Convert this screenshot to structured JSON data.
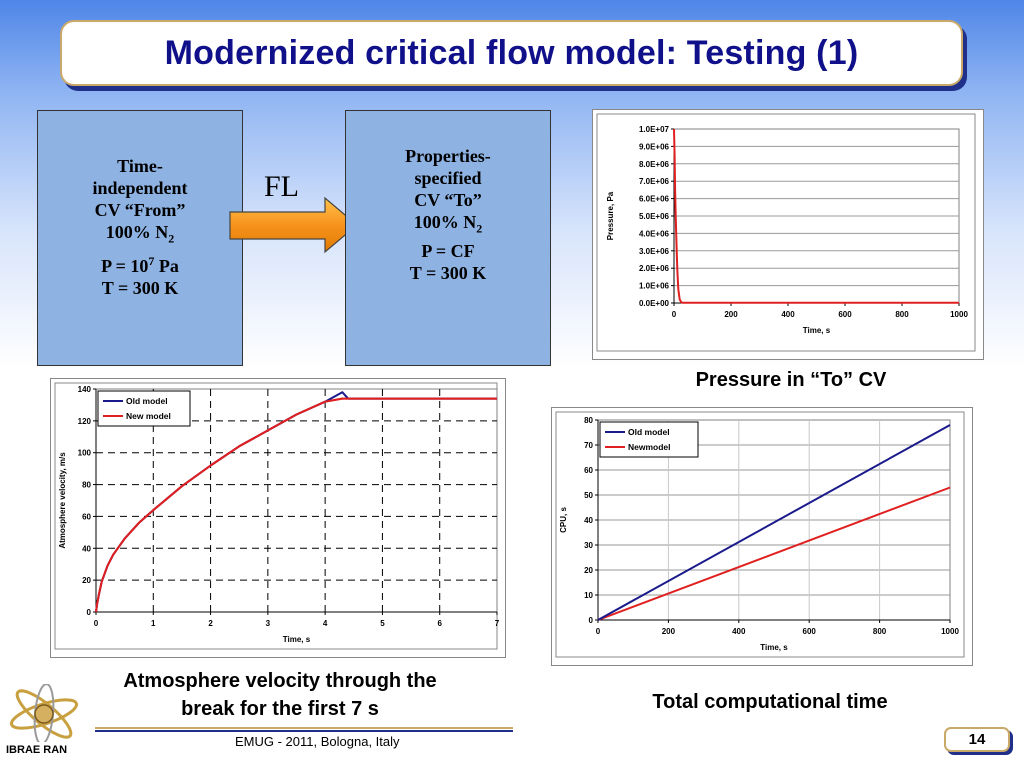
{
  "slide": {
    "title": "Modernized critical flow model: Testing (1)",
    "page_number": "14",
    "footer": "EMUG - 2011, Bologna, Italy",
    "org": "IBRAE RAN"
  },
  "cv_from": {
    "line1": "Time-",
    "line2": "independent",
    "line3": "CV “From”",
    "line4_main": "100% N",
    "line4_sub": "2",
    "line5_main": "P = 10",
    "line5_sup": "7",
    "line5_unit": " Pa",
    "line6": "T = 300 K"
  },
  "cv_to": {
    "line1": "Properties-",
    "line2": "specified",
    "line3": "CV “To”",
    "line4_main": "100% N",
    "line4_sub": "2",
    "line5": "P = CF",
    "line6": "T = 300 K"
  },
  "flow_label": "FL",
  "captions": {
    "pressure": "Pressure in “To” CV",
    "velocity_line1": "Atmosphere velocity through the",
    "velocity_line2": "break for the first 7 s",
    "cpu": "Total computational time"
  },
  "colors": {
    "old_model": "#1a1a8c",
    "new_model": "#e02020",
    "cv_box": "#8eb2e2",
    "title_text": "#10108a"
  },
  "chart_data": [
    {
      "id": "pressure",
      "type": "line",
      "xlabel": "Time, s",
      "ylabel": "Pressure, Pa",
      "xlim": [
        0,
        1000
      ],
      "ylim": [
        0,
        10000000
      ],
      "xticks": [
        0,
        200,
        400,
        600,
        800,
        1000
      ],
      "xtick_labels": [
        "0",
        "200",
        "400",
        "600",
        "800",
        "1000"
      ],
      "yticks": [
        0,
        1000000,
        2000000,
        3000000,
        4000000,
        5000000,
        6000000,
        7000000,
        8000000,
        9000000,
        10000000
      ],
      "ytick_labels": [
        "0.0E+00",
        "1.0E+06",
        "2.0E+06",
        "3.0E+06",
        "4.0E+06",
        "5.0E+06",
        "6.0E+06",
        "7.0E+06",
        "8.0E+06",
        "9.0E+06",
        "1.0E+07"
      ],
      "grid": "horizontal",
      "legend": "none",
      "series": [
        {
          "color": "#e02020",
          "x": [
            0,
            2,
            4,
            6,
            8,
            10,
            12,
            15,
            20,
            25,
            30,
            1000
          ],
          "y": [
            10000000,
            8500000,
            6500000,
            5000000,
            3800000,
            2800000,
            1800000,
            800000,
            200000,
            60000,
            20000,
            20000
          ]
        }
      ]
    },
    {
      "id": "velocity",
      "type": "line",
      "xlabel": "Time, s",
      "ylabel": "Atmosphere velocity, m/s",
      "xlim": [
        0,
        7
      ],
      "ylim": [
        0,
        140
      ],
      "xticks": [
        0,
        1,
        2,
        3,
        4,
        5,
        6,
        7
      ],
      "xtick_labels": [
        "0",
        "1",
        "2",
        "3",
        "4",
        "5",
        "6",
        "7"
      ],
      "yticks": [
        0,
        20,
        40,
        60,
        80,
        100,
        120,
        140
      ],
      "ytick_labels": [
        "0",
        "20",
        "40",
        "60",
        "80",
        "100",
        "120",
        "140"
      ],
      "grid": "dashed",
      "legend": "top-left",
      "series": [
        {
          "name": "Old model",
          "color": "#1a1a8c",
          "x": [
            0,
            0.02,
            0.05,
            0.1,
            0.2,
            0.3,
            0.5,
            0.75,
            1.0,
            1.5,
            2.0,
            2.5,
            3.0,
            3.5,
            4.0,
            4.2,
            4.3,
            4.4,
            7.0
          ],
          "y": [
            0,
            5,
            11,
            19,
            29,
            36,
            46,
            56,
            64,
            79,
            92,
            104,
            114,
            124,
            132,
            136,
            138,
            134,
            134
          ]
        },
        {
          "name": "New model",
          "color": "#e02020",
          "x": [
            0,
            0.02,
            0.05,
            0.1,
            0.2,
            0.3,
            0.5,
            0.75,
            1.0,
            1.5,
            2.0,
            2.5,
            3.0,
            3.5,
            4.0,
            4.3,
            7.0
          ],
          "y": [
            0,
            5,
            11,
            19,
            29,
            36,
            46,
            56,
            64,
            79,
            92,
            104,
            114,
            124,
            132,
            134,
            134
          ]
        }
      ]
    },
    {
      "id": "cpu",
      "type": "line",
      "xlabel": "Time, s",
      "ylabel": "CPU, s",
      "xlim": [
        0,
        1000
      ],
      "ylim": [
        0,
        80
      ],
      "xticks": [
        0,
        200,
        400,
        600,
        800,
        1000
      ],
      "xtick_labels": [
        "0",
        "200",
        "400",
        "600",
        "800",
        "1000"
      ],
      "yticks": [
        0,
        10,
        20,
        30,
        40,
        50,
        60,
        70,
        80
      ],
      "ytick_labels": [
        "0",
        "10",
        "20",
        "30",
        "40",
        "50",
        "60",
        "70",
        "80"
      ],
      "grid": "both",
      "legend": "top-left",
      "series": [
        {
          "name": "Old model",
          "color": "#1a1a8c",
          "x": [
            0,
            1000
          ],
          "y": [
            0,
            78
          ]
        },
        {
          "name": "Newmodel",
          "color": "#e02020",
          "x": [
            0,
            1000
          ],
          "y": [
            0,
            53
          ]
        }
      ]
    }
  ]
}
